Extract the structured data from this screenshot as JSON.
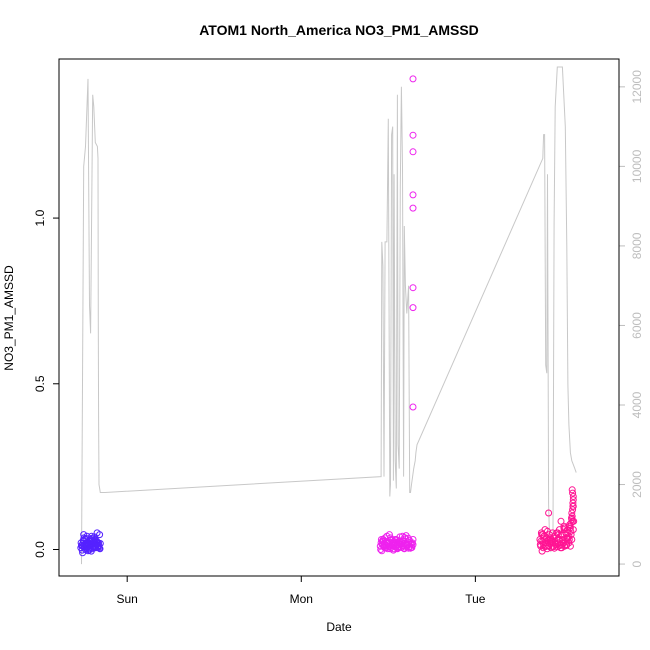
{
  "chart_data": {
    "type": "scatter",
    "title": "ATOM1 North_America NO3_PM1_AMSSD",
    "xlabel": "Date",
    "ylabel": "NO3_PM1_AMSSD",
    "x_ticks": [
      {
        "label": "Sun",
        "value": 24
      },
      {
        "label": "Mon",
        "value": 48
      },
      {
        "label": "Tue",
        "value": 72
      }
    ],
    "xlim": [
      14.6,
      91.8
    ],
    "ylim": [
      -0.08,
      1.48
    ],
    "y_ticks": [
      {
        "label": "0.0",
        "value": 0.0
      },
      {
        "label": "0.5",
        "value": 0.5
      },
      {
        "label": "1.0",
        "value": 1.0
      }
    ],
    "y2lim": [
      -300,
      12700
    ],
    "y2_ticks": [
      {
        "label": "0",
        "value": 0
      },
      {
        "label": "2000",
        "value": 2000
      },
      {
        "label": "4000",
        "value": 4000
      },
      {
        "label": "6000",
        "value": 6000
      },
      {
        "label": "8000",
        "value": 8000
      },
      {
        "label": "10000",
        "value": 10000
      },
      {
        "label": "12000",
        "value": 12000
      }
    ],
    "colors": {
      "altitude_line": "#c8c8c8",
      "cluster1_points": "#5522ff",
      "cluster2_points": "#ee22ee",
      "cluster3_points": "#ff1493"
    },
    "altitude_series": {
      "x": [
        17.7,
        18.0,
        18.25,
        18.6,
        18.8,
        18.95,
        19.25,
        19.4,
        19.6,
        19.9,
        19.98,
        20.02,
        20.06,
        20.12,
        20.3,
        20.6,
        20.7,
        20.8,
        20.85,
        20.9,
        20.95,
        59.0,
        59.1,
        59.25,
        59.4,
        59.55,
        59.8,
        60.0,
        60.2,
        60.3,
        60.45,
        60.6,
        60.7,
        60.8,
        60.95,
        61.1,
        61.25,
        61.35,
        61.5,
        61.65,
        61.8,
        61.95,
        62.1,
        62.2,
        62.35,
        62.55,
        62.8,
        62.95,
        63.05,
        63.2,
        63.35,
        63.5,
        63.7,
        63.8,
        63.95,
        81.3,
        81.4,
        81.55,
        81.7,
        81.85,
        81.95,
        82.1,
        82.2,
        82.4,
        82.55,
        82.7,
        82.85,
        83.0,
        83.3,
        83.7,
        84.0,
        84.4,
        84.6,
        84.75,
        84.9,
        85.1,
        85.3,
        85.5,
        85.7,
        85.9
      ],
      "y": [
        0,
        10000,
        10500,
        12200,
        6500,
        5800,
        11800,
        11500,
        10600,
        10500,
        10200,
        6000,
        3600,
        2000,
        1800,
        1800,
        1800,
        1800,
        1800,
        1800,
        1800,
        2200,
        8100,
        7500,
        2200,
        8100,
        8100,
        11200,
        1700,
        2000,
        10800,
        11000,
        2100,
        9800,
        2600,
        1900,
        11800,
        3000,
        2400,
        9500,
        12000,
        10000,
        2200,
        8500,
        7000,
        6300,
        7000,
        1800,
        1800,
        2000,
        2200,
        2400,
        2600,
        2800,
        3000,
        10200,
        10800,
        10800,
        5000,
        4800,
        9800,
        1500,
        800,
        300,
        500,
        800,
        8600,
        11500,
        12500,
        12500,
        12500,
        11000,
        8000,
        4500,
        3500,
        2800,
        2600,
        2500,
        2400,
        2300
      ]
    },
    "series": [
      {
        "x": [
          17.6,
          17.7,
          17.8,
          17.9,
          18.0,
          18.1,
          18.15,
          18.2,
          18.3,
          18.4,
          18.5,
          18.6,
          18.7,
          18.8,
          18.9,
          19.0,
          19.1,
          19.2,
          19.3,
          19.4,
          19.5,
          19.6,
          19.7,
          19.8,
          19.9,
          20.0,
          20.1,
          20.2,
          20.3,
          17.65,
          17.85,
          18.05,
          18.25,
          18.45,
          18.65,
          18.85,
          19.05,
          19.25,
          19.45,
          19.65,
          19.85,
          20.05,
          20.25,
          17.75,
          17.95,
          18.15,
          18.35,
          18.55,
          18.75,
          18.95,
          19.15,
          19.35,
          19.55,
          19.75,
          19.95,
          20.15,
          18.0,
          18.5,
          19.0,
          19.5,
          20.0,
          18.3,
          18.8,
          19.3,
          19.8,
          17.9,
          18.4,
          18.9,
          19.4,
          19.9
        ],
        "y": [
          0.005,
          0.012,
          -0.002,
          0.018,
          0.025,
          0.008,
          0.015,
          0.032,
          0.004,
          0.01,
          0.02,
          -0.004,
          0.012,
          0.028,
          0.006,
          0.016,
          0.04,
          0.002,
          0.018,
          0.024,
          0.01,
          0.03,
          0.008,
          0.014,
          0.022,
          0.006,
          0.012,
          0.045,
          0.018,
          0.02,
          -0.01,
          0.035,
          0.0,
          0.04,
          0.015,
          0.025,
          -0.005,
          0.01,
          0.03,
          0.005,
          0.05,
          0.02,
          0.002,
          0.012,
          0.028,
          0.016,
          0.008,
          0.022,
          -0.002,
          0.014,
          0.034,
          0.006,
          0.018,
          0.026,
          0.01,
          0.004,
          0.045,
          0.012,
          0.03,
          0.038,
          0.008,
          0.02,
          0.002,
          0.015,
          0.025,
          0.01,
          0.033,
          0.018,
          0.006,
          0.022
        ]
      },
      {
        "x": [
          58.9,
          59.0,
          59.1,
          59.2,
          59.3,
          59.4,
          59.5,
          59.6,
          59.7,
          59.8,
          59.9,
          60.0,
          60.1,
          60.2,
          60.3,
          60.4,
          60.5,
          60.6,
          60.7,
          60.8,
          60.9,
          61.0,
          61.1,
          61.2,
          61.3,
          61.4,
          61.5,
          61.6,
          61.7,
          61.8,
          61.9,
          62.0,
          62.1,
          62.2,
          62.3,
          62.4,
          62.5,
          62.6,
          62.7,
          62.8,
          62.9,
          63.0,
          63.1,
          63.2,
          63.3,
          58.95,
          59.15,
          59.35,
          59.55,
          59.75,
          59.95,
          60.15,
          60.35,
          60.55,
          60.75,
          60.95,
          61.15,
          61.35,
          61.55,
          61.75,
          61.95,
          62.15,
          62.35,
          62.55,
          62.75,
          62.95,
          63.15,
          59.05,
          59.45,
          59.85,
          60.25,
          60.65,
          61.05,
          61.45,
          61.85,
          62.25,
          62.65,
          63.05,
          59.25,
          59.65,
          60.05,
          60.45,
          60.85,
          61.25,
          61.65,
          62.05,
          62.45,
          62.85,
          63.25,
          63.4,
          63.4,
          63.4,
          63.4,
          63.4,
          63.4,
          63.4,
          63.4,
          63.4,
          63.4
        ],
        "y": [
          0.01,
          0.02,
          -0.004,
          0.015,
          0.03,
          0.008,
          0.005,
          0.025,
          0.012,
          0.04,
          0.002,
          0.018,
          0.022,
          0.01,
          0.035,
          0.006,
          0.015,
          0.028,
          -0.002,
          0.012,
          0.02,
          0.008,
          0.03,
          0.016,
          0.004,
          0.024,
          0.01,
          0.038,
          0.014,
          0.006,
          0.02,
          0.026,
          0.012,
          0.002,
          0.018,
          0.032,
          0.008,
          0.015,
          0.022,
          0.004,
          0.028,
          0.01,
          0.016,
          0.006,
          0.02,
          0.0,
          0.025,
          0.012,
          0.035,
          0.006,
          0.018,
          0.045,
          0.01,
          0.022,
          0.002,
          0.03,
          0.014,
          0.008,
          0.026,
          0.016,
          0.04,
          0.004,
          0.02,
          0.012,
          0.034,
          0.008,
          0.018,
          0.03,
          0.01,
          0.022,
          0.002,
          0.016,
          0.028,
          0.006,
          0.02,
          0.036,
          0.012,
          0.004,
          0.024,
          0.014,
          0.008,
          0.03,
          0.018,
          0.002,
          0.026,
          0.01,
          0.042,
          0.016,
          0.006,
          1.42,
          1.25,
          1.2,
          1.07,
          1.03,
          0.79,
          0.73,
          0.43,
          0.015,
          0.03
        ]
      },
      {
        "x": [
          80.9,
          81.0,
          81.1,
          81.2,
          81.3,
          81.4,
          81.5,
          81.6,
          81.7,
          81.8,
          81.9,
          82.0,
          82.1,
          82.2,
          82.3,
          82.4,
          82.5,
          82.6,
          82.7,
          82.8,
          82.9,
          83.0,
          83.1,
          83.2,
          83.3,
          83.4,
          83.5,
          83.6,
          83.7,
          83.8,
          83.9,
          84.0,
          84.1,
          84.2,
          84.3,
          84.4,
          84.5,
          84.6,
          84.7,
          84.8,
          84.9,
          85.0,
          85.1,
          85.2,
          85.3,
          85.4,
          85.5,
          80.95,
          81.15,
          81.35,
          81.55,
          81.75,
          81.95,
          82.15,
          82.35,
          82.55,
          82.75,
          82.95,
          83.15,
          83.35,
          83.55,
          83.75,
          83.95,
          84.15,
          84.35,
          84.55,
          84.75,
          84.95,
          85.15,
          81.05,
          81.45,
          81.85,
          82.25,
          82.65,
          83.05,
          83.45,
          83.85,
          84.25,
          84.65,
          85.05,
          85.35,
          85.45,
          85.5,
          85.3,
          85.4,
          85.2,
          85.45,
          85.3,
          85.5,
          85.25,
          85.4,
          85.35,
          85.5,
          85.55,
          85.1,
          84.9,
          82.1,
          83.8,
          84.2,
          81.3,
          81.6
        ],
        "y": [
          0.03,
          0.01,
          0.05,
          -0.005,
          0.025,
          0.015,
          0.04,
          0.008,
          0.02,
          0.035,
          0.002,
          0.028,
          0.012,
          0.045,
          0.018,
          0.006,
          0.03,
          0.022,
          0.01,
          0.038,
          0.004,
          0.026,
          0.016,
          0.05,
          0.008,
          0.032,
          0.02,
          0.06,
          0.012,
          0.042,
          0.005,
          0.03,
          0.018,
          0.07,
          0.01,
          0.025,
          0.048,
          0.015,
          0.06,
          0.035,
          0.02,
          0.075,
          0.01,
          0.045,
          0.03,
          0.085,
          0.06,
          0.015,
          0.045,
          0.005,
          0.03,
          0.02,
          0.055,
          0.01,
          0.035,
          0.025,
          0.008,
          0.04,
          0.015,
          0.05,
          0.03,
          0.005,
          0.045,
          0.02,
          0.065,
          0.012,
          0.05,
          0.03,
          0.055,
          0.025,
          0.04,
          0.01,
          0.03,
          0.05,
          0.02,
          0.045,
          0.015,
          0.06,
          0.035,
          0.07,
          0.1,
          0.13,
          0.15,
          0.09,
          0.12,
          0.08,
          0.14,
          0.11,
          0.16,
          0.095,
          0.17,
          0.18,
          0.13,
          0.085,
          0.065,
          0.04,
          0.11,
          0.085,
          0.065,
          0.045,
          0.06
        ]
      }
    ]
  }
}
